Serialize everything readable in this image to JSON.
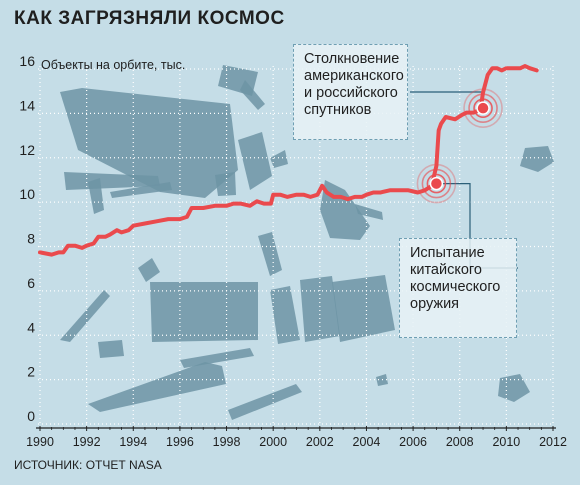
{
  "title": "КАК ЗАГРЯЗНЯЛИ КОСМОС",
  "source": "ИСТОЧНИК: ОТЧЕТ NASA",
  "colors": {
    "background": "#c5dde7",
    "line": "#ea4a4d",
    "debris": "#6d94a5",
    "grid": "#ffffff"
  },
  "chart_data": {
    "type": "line",
    "title": "КАК ЗАГРЯЗНЯЛИ КОСМОС",
    "ylabel": "Объекты на орбите, тыс.",
    "xlabel": "",
    "xlim": [
      1990,
      2012
    ],
    "ylim": [
      0,
      16
    ],
    "x_ticks": [
      1990,
      1992,
      1994,
      1996,
      1998,
      2000,
      2002,
      2004,
      2006,
      2008,
      2010,
      2012
    ],
    "y_ticks": [
      0,
      2,
      4,
      6,
      8,
      10,
      12,
      14,
      16
    ],
    "grid": true,
    "series": [
      {
        "x": [
          1990.0,
          1990.5,
          1990.8,
          1991.0,
          1991.2,
          1991.5,
          1991.8,
          1992.0,
          1992.3,
          1992.5,
          1992.8,
          1993.0,
          1993.3,
          1993.5,
          1993.8,
          1994.0,
          1994.5,
          1995.0,
          1995.5,
          1996.0,
          1996.3,
          1996.5,
          1997.0,
          1997.5,
          1998.0,
          1998.3,
          1998.6,
          1999.0,
          1999.3,
          1999.6,
          1999.9,
          2000.0,
          2000.3,
          2000.6,
          2001.0,
          2001.3,
          2001.6,
          2001.9,
          2002.1,
          2002.3,
          2002.6,
          2002.9,
          2003.2,
          2003.5,
          2003.8,
          2004.0,
          2004.3,
          2004.6,
          2005.0,
          2005.4,
          2005.8,
          2006.2,
          2006.5,
          2006.8,
          2007.0,
          2007.1,
          2007.2,
          2007.4,
          2007.8,
          2008.1,
          2008.3,
          2008.6,
          2008.8,
          2008.9,
          2009.0,
          2009.2,
          2009.4,
          2009.6,
          2009.8,
          2010.0,
          2010.2,
          2010.4,
          2010.6,
          2010.8,
          2011.0,
          2011.3
        ],
        "y": [
          7.6,
          7.5,
          7.6,
          7.6,
          7.9,
          7.9,
          7.8,
          7.9,
          8.0,
          8.3,
          8.3,
          8.4,
          8.6,
          8.5,
          8.6,
          8.8,
          8.9,
          9.0,
          9.1,
          9.1,
          9.2,
          9.6,
          9.6,
          9.7,
          9.7,
          9.8,
          9.8,
          9.7,
          9.9,
          9.8,
          9.8,
          10.2,
          10.2,
          10.1,
          10.2,
          10.2,
          10.1,
          10.2,
          10.6,
          10.3,
          10.1,
          10.1,
          10.0,
          10.1,
          10.1,
          10.2,
          10.3,
          10.3,
          10.4,
          10.4,
          10.4,
          10.3,
          10.4,
          10.6,
          11.5,
          13.1,
          13.4,
          13.7,
          13.6,
          13.8,
          13.9,
          13.9,
          14.0,
          14.1,
          14.8,
          15.6,
          15.9,
          15.9,
          15.8,
          15.9,
          15.9,
          15.9,
          15.9,
          16.0,
          15.9,
          15.8
        ]
      }
    ],
    "events": [
      {
        "x": 2007.0,
        "y": 10.7
      },
      {
        "x": 2009.0,
        "y": 14.1
      }
    ],
    "annotations": [
      [
        "Столкновение",
        "американского",
        "и российского",
        "спутников"
      ],
      [
        "Испытание",
        "китайского",
        "космического",
        "оружия"
      ]
    ]
  }
}
